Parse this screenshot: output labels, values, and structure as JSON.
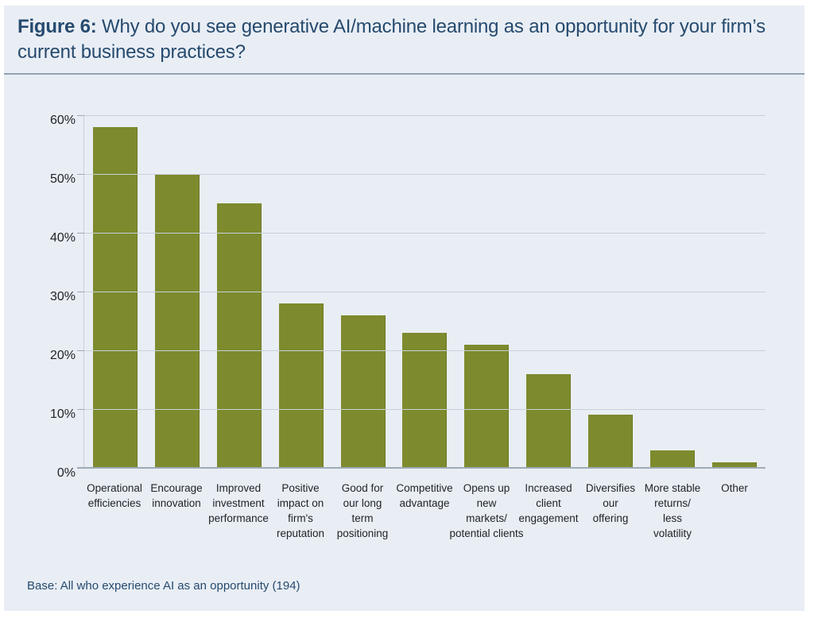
{
  "figure": {
    "label": "Figure 6:",
    "title_rest": " Why do you see generative AI/machine learning as an opportunity for your firm’s current business practices?"
  },
  "footer": {
    "base_note": "Base: All who experience AI as an opportunity (194)"
  },
  "colors": {
    "card_bg": "#e9eef5",
    "title_text": "#264a6e",
    "bar": "#7d8a2d",
    "gridline": "#c8d0d9",
    "axis": "#9faab5",
    "divider": "#92a2b2",
    "tick_text": "#1f2226"
  },
  "chart_data": {
    "type": "bar",
    "title": "Why do you see generative AI/machine learning as an opportunity for your firm’s current business practices?",
    "categories": [
      "Operational efficiencies",
      "Encourage innovation",
      "Improved investment performance",
      "Positive impact on firm's reputation",
      "Good for our long term positioning",
      "Competitive advantage",
      "Opens up new markets/ potential clients",
      "Increased client engagement",
      "Diversifies our offering",
      "More stable returns/ less volatility",
      "Other"
    ],
    "category_lines": [
      [
        "Operational",
        "efficiencies"
      ],
      [
        "Encourage",
        "innovation"
      ],
      [
        "Improved",
        "investment",
        "performance"
      ],
      [
        "Positive",
        "impact on",
        "firm's",
        "reputation"
      ],
      [
        "Good for",
        "our long",
        "term",
        "positioning"
      ],
      [
        "Competitive",
        "advantage"
      ],
      [
        "Opens up",
        "new",
        "markets/",
        "potential clients"
      ],
      [
        "Increased",
        "client",
        "engagement"
      ],
      [
        "Diversifies",
        "our",
        "offering"
      ],
      [
        "More stable",
        "returns/",
        "less",
        "volatility"
      ],
      [
        "Other"
      ]
    ],
    "values": [
      58,
      50,
      45,
      28,
      26,
      23,
      21,
      16,
      9,
      3,
      1
    ],
    "unit": "%",
    "xlabel": "",
    "ylabel": "",
    "ylim": [
      0,
      60
    ],
    "yticks": [
      0,
      10,
      20,
      30,
      40,
      50,
      60
    ],
    "ytick_labels": [
      "0%",
      "10%",
      "20%",
      "30%",
      "40%",
      "50%",
      "60%"
    ],
    "grid": true,
    "legend": "none"
  }
}
